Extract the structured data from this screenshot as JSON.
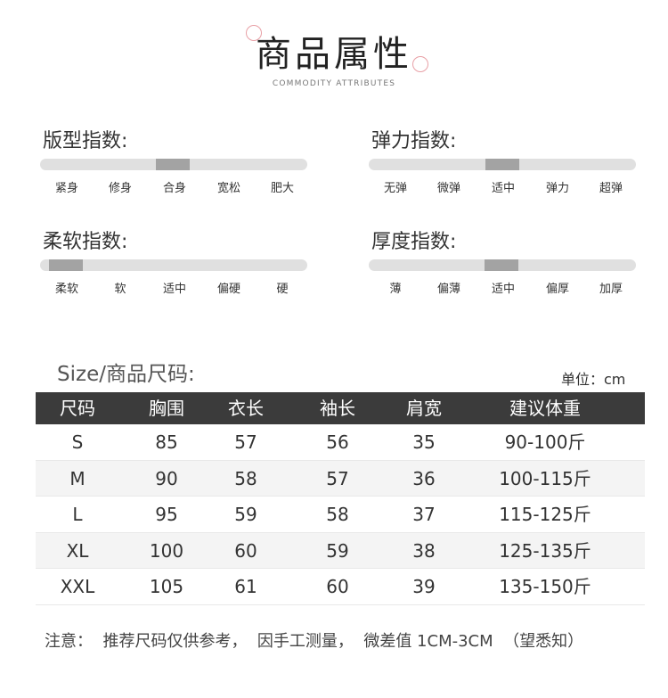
{
  "header": {
    "title": "商品属性",
    "subtitle": "COMMODITY ATTRIBUTES",
    "accent_color": "#e8a0a6"
  },
  "indices": [
    {
      "title": "版型指数:",
      "options": [
        "紧身",
        "修身",
        "合身",
        "宽松",
        "肥大"
      ],
      "selected": "合身"
    },
    {
      "title": "弹力指数:",
      "options": [
        "无弹",
        "微弹",
        "适中",
        "弹力",
        "超弹"
      ],
      "selected": "适中"
    },
    {
      "title": "柔软指数:",
      "options": [
        "柔软",
        "软",
        "适中",
        "偏硬",
        "硬"
      ],
      "selected": "柔软"
    },
    {
      "title": "厚度指数:",
      "options": [
        "薄",
        "偏薄",
        "适中",
        "偏厚",
        "加厚"
      ],
      "selected": "适中"
    }
  ],
  "size_table": {
    "title": "Size/商品尺码:",
    "unit": "单位：cm",
    "columns": [
      "尺码",
      "胸围",
      "衣长",
      "袖长",
      "肩宽",
      "建议体重"
    ],
    "rows": [
      [
        "S",
        "85",
        "57",
        "56",
        "35",
        "90-100斤"
      ],
      [
        "M",
        "90",
        "58",
        "57",
        "36",
        "100-115斤"
      ],
      [
        "L",
        "95",
        "59",
        "58",
        "37",
        "115-125斤"
      ],
      [
        "XL",
        "100",
        "60",
        "59",
        "38",
        "125-135斤"
      ],
      [
        "XXL",
        "105",
        "61",
        "60",
        "39",
        "135-150斤"
      ]
    ]
  },
  "note": "注意：  推荐尺码仅供参考，  因手工测量，  微差值 1CM-3CM  （望悉知）"
}
